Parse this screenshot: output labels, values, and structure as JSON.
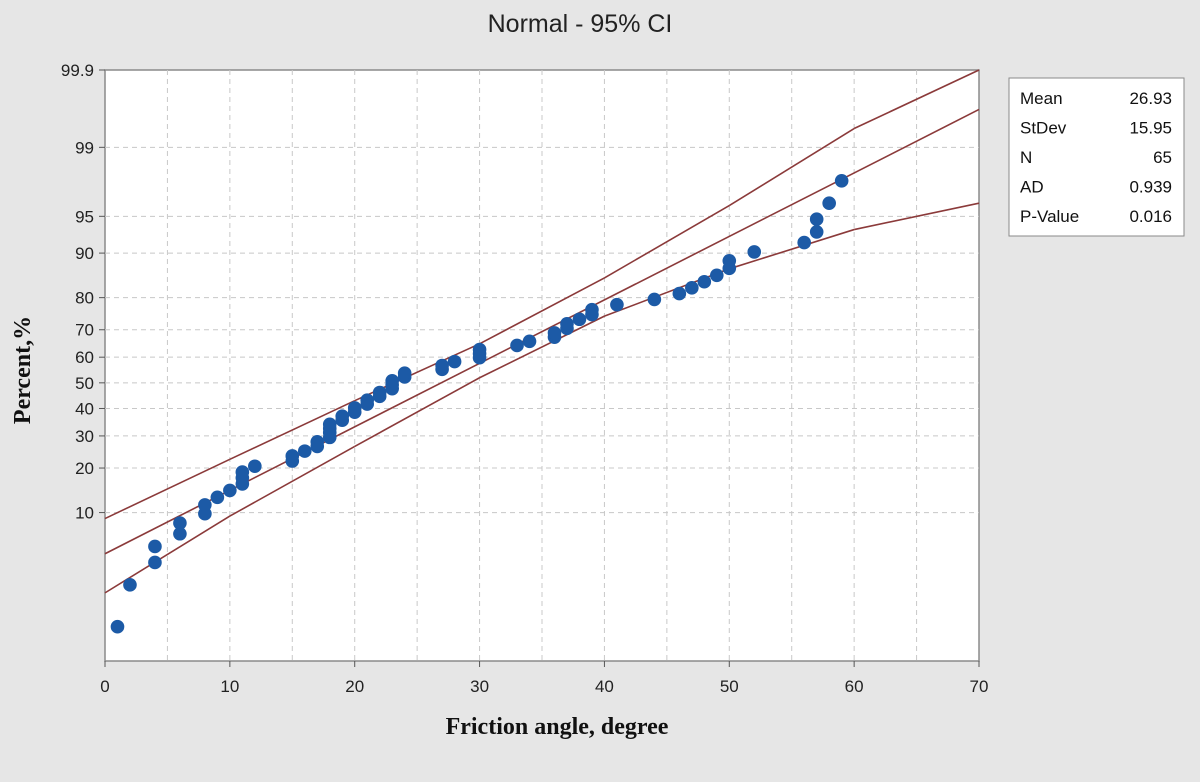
{
  "chart_data": {
    "type": "scatter",
    "title": "Normal - 95% CI",
    "xlabel": "Friction angle, degree",
    "ylabel": "Percent,%",
    "xlim": [
      0,
      70
    ],
    "x_ticks": [
      0,
      10,
      20,
      30,
      40,
      50,
      60,
      70
    ],
    "y_scale": "normal probability",
    "ylim": [
      0.3,
      99.9
    ],
    "y_ticks": [
      99.9,
      99,
      95,
      90,
      80,
      70,
      60,
      50,
      40,
      30,
      20,
      10
    ],
    "grid": true,
    "colors": {
      "points": "#1c5aa6",
      "fit_line": "#8b3a3a",
      "ci_lines": "#8b3a3a",
      "background": "#e6e6e6",
      "plot_area": "#ffffff"
    },
    "stats": [
      {
        "label": "Mean",
        "value": "26.93"
      },
      {
        "label": "StDev",
        "value": "15.95"
      },
      {
        "label": "N",
        "value": "65"
      },
      {
        "label": "AD",
        "value": "0.939"
      },
      {
        "label": "P-Value",
        "value": "0.016"
      }
    ],
    "fit_line": {
      "mean": 26.93,
      "stdev": 15.95
    },
    "confidence_bands": [
      {
        "x": 0,
        "lower_percent": 1.9,
        "upper_percent": 9.0
      },
      {
        "x": 10,
        "lower_percent": 9.4,
        "upper_percent": 22.5
      },
      {
        "x": 20,
        "lower_percent": 26.5,
        "upper_percent": 43.0
      },
      {
        "x": 30,
        "lower_percent": 52.0,
        "upper_percent": 65.0
      },
      {
        "x": 40,
        "lower_percent": 74.5,
        "upper_percent": 85.0
      },
      {
        "x": 50,
        "lower_percent": 87.0,
        "upper_percent": 96.0
      },
      {
        "x": 60,
        "lower_percent": 93.5,
        "upper_percent": 99.4
      },
      {
        "x": 70,
        "lower_percent": 96.2,
        "upper_percent": 99.9
      }
    ],
    "points": [
      {
        "x": 1,
        "y": 0.8
      },
      {
        "x": 2,
        "y": 2.3
      },
      {
        "x": 4,
        "y": 3.8
      },
      {
        "x": 4,
        "y": 5.3
      },
      {
        "x": 6,
        "y": 6.8
      },
      {
        "x": 6,
        "y": 8.3
      },
      {
        "x": 8,
        "y": 9.8
      },
      {
        "x": 8,
        "y": 11.4
      },
      {
        "x": 9,
        "y": 12.9
      },
      {
        "x": 10,
        "y": 14.4
      },
      {
        "x": 11,
        "y": 15.9
      },
      {
        "x": 11,
        "y": 17.4
      },
      {
        "x": 11,
        "y": 18.9
      },
      {
        "x": 12,
        "y": 20.5
      },
      {
        "x": 15,
        "y": 22.0
      },
      {
        "x": 15,
        "y": 23.5
      },
      {
        "x": 16,
        "y": 25.0
      },
      {
        "x": 17,
        "y": 26.5
      },
      {
        "x": 17,
        "y": 28.0
      },
      {
        "x": 18,
        "y": 29.5
      },
      {
        "x": 18,
        "y": 31.1
      },
      {
        "x": 18,
        "y": 32.6
      },
      {
        "x": 18,
        "y": 34.1
      },
      {
        "x": 19,
        "y": 35.6
      },
      {
        "x": 19,
        "y": 37.1
      },
      {
        "x": 20,
        "y": 38.6
      },
      {
        "x": 20,
        "y": 40.2
      },
      {
        "x": 21,
        "y": 41.7
      },
      {
        "x": 21,
        "y": 43.2
      },
      {
        "x": 22,
        "y": 44.7
      },
      {
        "x": 22,
        "y": 46.2
      },
      {
        "x": 23,
        "y": 47.7
      },
      {
        "x": 23,
        "y": 49.2
      },
      {
        "x": 23,
        "y": 50.8
      },
      {
        "x": 24,
        "y": 52.3
      },
      {
        "x": 24,
        "y": 53.8
      },
      {
        "x": 27,
        "y": 55.3
      },
      {
        "x": 27,
        "y": 56.8
      },
      {
        "x": 28,
        "y": 58.3
      },
      {
        "x": 30,
        "y": 59.8
      },
      {
        "x": 30,
        "y": 61.4
      },
      {
        "x": 30,
        "y": 62.9
      },
      {
        "x": 33,
        "y": 64.4
      },
      {
        "x": 34,
        "y": 65.9
      },
      {
        "x": 36,
        "y": 67.4
      },
      {
        "x": 36,
        "y": 68.9
      },
      {
        "x": 37,
        "y": 70.5
      },
      {
        "x": 37,
        "y": 72.0
      },
      {
        "x": 38,
        "y": 73.5
      },
      {
        "x": 39,
        "y": 75.0
      },
      {
        "x": 39,
        "y": 76.5
      },
      {
        "x": 41,
        "y": 78.0
      },
      {
        "x": 44,
        "y": 79.5
      },
      {
        "x": 46,
        "y": 81.1
      },
      {
        "x": 47,
        "y": 82.6
      },
      {
        "x": 48,
        "y": 84.1
      },
      {
        "x": 49,
        "y": 85.6
      },
      {
        "x": 50,
        "y": 87.1
      },
      {
        "x": 50,
        "y": 88.6
      },
      {
        "x": 52,
        "y": 90.2
      },
      {
        "x": 56,
        "y": 91.7
      },
      {
        "x": 57,
        "y": 93.2
      },
      {
        "x": 57,
        "y": 94.7
      },
      {
        "x": 58,
        "y": 96.2
      },
      {
        "x": 59,
        "y": 97.7
      }
    ]
  }
}
